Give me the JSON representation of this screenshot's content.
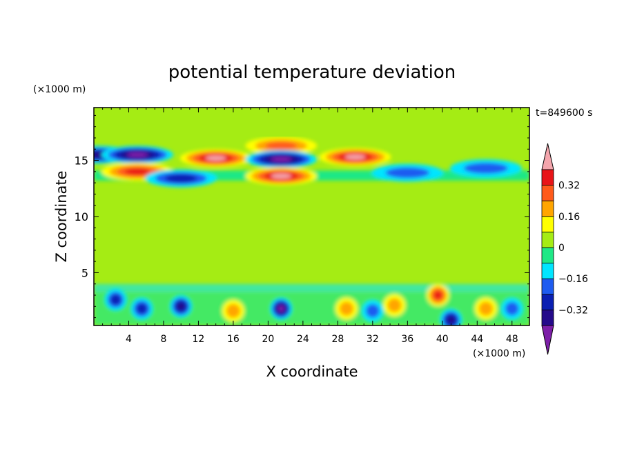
{
  "chart_data": {
    "type": "contour",
    "title": "potential temperature deviation",
    "xlabel": "X coordinate",
    "ylabel": "Z coordinate",
    "x_unit": "(×1000 m)",
    "y_unit": "(×1000 m)",
    "time_label": "t=849600 s",
    "xlim": [
      0,
      50
    ],
    "ylim": [
      0.3,
      19.7
    ],
    "x_ticks": [
      4,
      8,
      12,
      16,
      20,
      24,
      28,
      32,
      36,
      40,
      44,
      48
    ],
    "y_ticks": [
      5,
      10,
      15
    ],
    "colorbar": {
      "ticks": [
        "0.32",
        "0.16",
        "0",
        "−0.16",
        "−0.32"
      ],
      "tick_values": [
        0.32,
        0.16,
        0,
        -0.16,
        -0.32
      ],
      "levels": [
        -0.4,
        -0.32,
        -0.24,
        -0.16,
        -0.08,
        0,
        0.08,
        0.16,
        0.24,
        0.32,
        0.4
      ],
      "colors": [
        "#7d1fa8",
        "#240a8a",
        "#0a1fb2",
        "#1e5cf0",
        "#00e5ff",
        "#1ee886",
        "#a5ec14",
        "#ffff00",
        "#ffa500",
        "#ff5a1a",
        "#e81418",
        "#f4a6ad"
      ]
    },
    "features": [
      {
        "x": 0.5,
        "z": 15.5,
        "value": -0.36
      },
      {
        "x": 5,
        "z": 15.5,
        "value": -0.4
      },
      {
        "x": 5,
        "z": 14,
        "value": 0.36
      },
      {
        "x": 14,
        "z": 15.2,
        "value": 0.42
      },
      {
        "x": 21.5,
        "z": 16.3,
        "value": 0.3
      },
      {
        "x": 21.5,
        "z": 15.1,
        "value": -0.42
      },
      {
        "x": 21.5,
        "z": 13.6,
        "value": 0.42
      },
      {
        "x": 30,
        "z": 15.3,
        "value": 0.42
      },
      {
        "x": 36,
        "z": 13.9,
        "value": -0.22
      },
      {
        "x": 45,
        "z": 14.3,
        "value": -0.2
      },
      {
        "x": 10,
        "z": 13.4,
        "value": -0.24
      },
      {
        "x": 2.5,
        "z": 2.6,
        "value": -0.3
      },
      {
        "x": 5.5,
        "z": 1.8,
        "value": -0.28
      },
      {
        "x": 10,
        "z": 2.0,
        "value": -0.36
      },
      {
        "x": 16,
        "z": 1.6,
        "value": 0.22
      },
      {
        "x": 21.5,
        "z": 1.8,
        "value": -0.4
      },
      {
        "x": 29,
        "z": 1.8,
        "value": 0.2
      },
      {
        "x": 32,
        "z": 1.6,
        "value": -0.16
      },
      {
        "x": 34.5,
        "z": 2.1,
        "value": 0.2
      },
      {
        "x": 39.5,
        "z": 3.0,
        "value": 0.36
      },
      {
        "x": 41,
        "z": 0.8,
        "value": -0.34
      },
      {
        "x": 45,
        "z": 1.8,
        "value": 0.22
      },
      {
        "x": 48,
        "z": 1.8,
        "value": -0.18
      }
    ]
  }
}
